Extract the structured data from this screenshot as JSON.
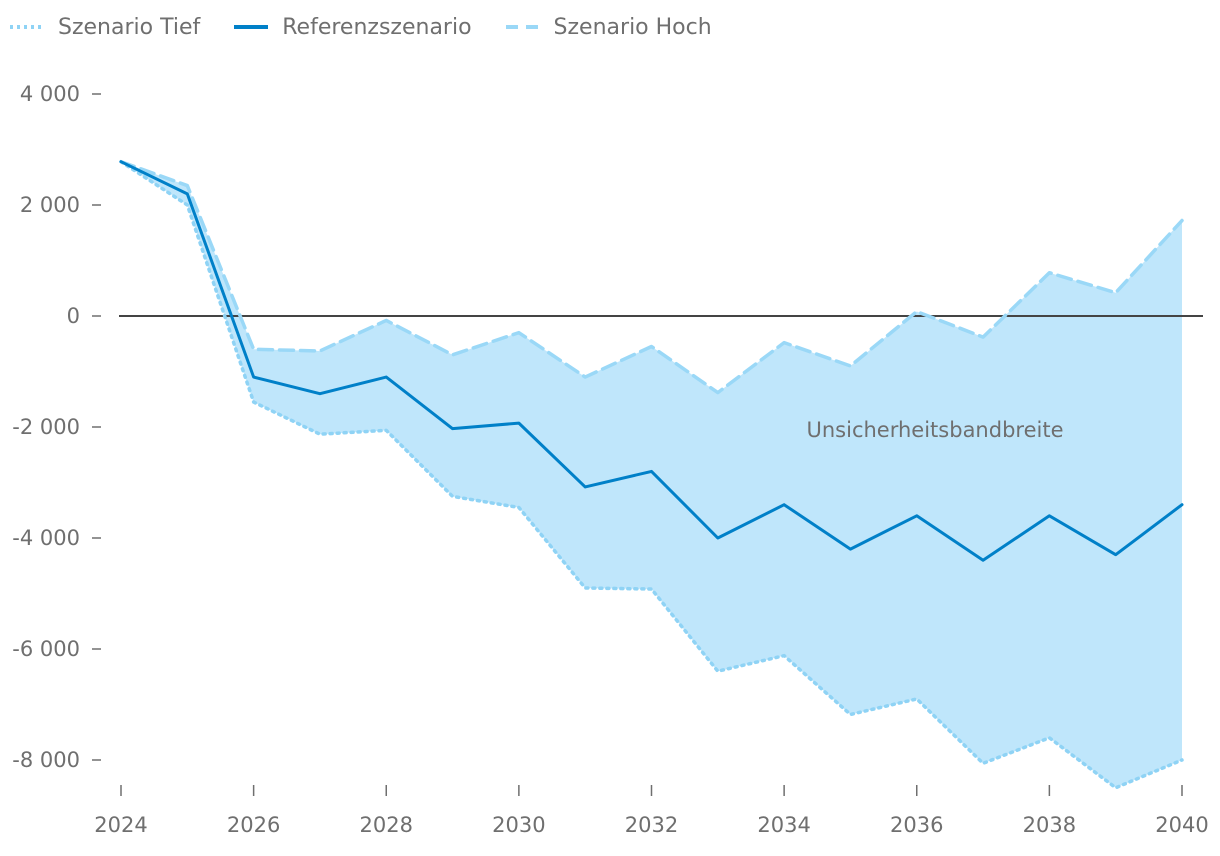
{
  "chart_data": {
    "type": "line",
    "x": [
      2024,
      2025,
      2026,
      2027,
      2028,
      2029,
      2030,
      2031,
      2032,
      2033,
      2034,
      2035,
      2036,
      2037,
      2038,
      2039,
      2040
    ],
    "series": [
      {
        "name": "Szenario Tief",
        "style": "dotted",
        "color": "#8fd3f5",
        "values": [
          2780,
          2000,
          -1550,
          -2130,
          -2060,
          -3250,
          -3450,
          -4900,
          -4920,
          -6400,
          -6120,
          -7180,
          -6900,
          -8060,
          -7600,
          -8500,
          -8000
        ]
      },
      {
        "name": "Referenzszenario",
        "style": "solid",
        "color": "#0080c8",
        "values": [
          2780,
          2200,
          -1100,
          -1400,
          -1100,
          -2030,
          -1930,
          -3080,
          -2800,
          -4000,
          -3400,
          -4200,
          -3600,
          -4400,
          -3600,
          -4300,
          -3400
        ]
      },
      {
        "name": "Szenario Hoch",
        "style": "dashed",
        "color": "#9ad8f7",
        "values": [
          2780,
          2350,
          -600,
          -630,
          -80,
          -700,
          -300,
          -1100,
          -550,
          -1380,
          -480,
          -900,
          80,
          -380,
          780,
          420,
          1720
        ]
      }
    ],
    "band": {
      "label": "Unsicherheitsbandbreite",
      "color": "#bfe6fb",
      "lower_series": "Szenario Tief",
      "upper_series": "Szenario Hoch"
    },
    "xticks": [
      2024,
      2026,
      2028,
      2030,
      2032,
      2034,
      2036,
      2038,
      2040
    ],
    "xtick_labels": [
      "2024",
      "2026",
      "2028",
      "2030",
      "2032",
      "2034",
      "2036",
      "2038",
      "2040"
    ],
    "yticks": [
      4000,
      2000,
      0,
      -2000,
      -4000,
      -6000,
      -8000
    ],
    "ytick_labels": [
      "4 000",
      "2 000",
      "0",
      "-2 000",
      "-4 000",
      "-6 000",
      "-8 000"
    ],
    "xlim": [
      2024,
      2040
    ],
    "ylim": [
      -8500,
      4000
    ],
    "zero_line_color": "#444444",
    "legend_position": "top-left",
    "grid": false,
    "title": "",
    "xlabel": "",
    "ylabel": ""
  }
}
